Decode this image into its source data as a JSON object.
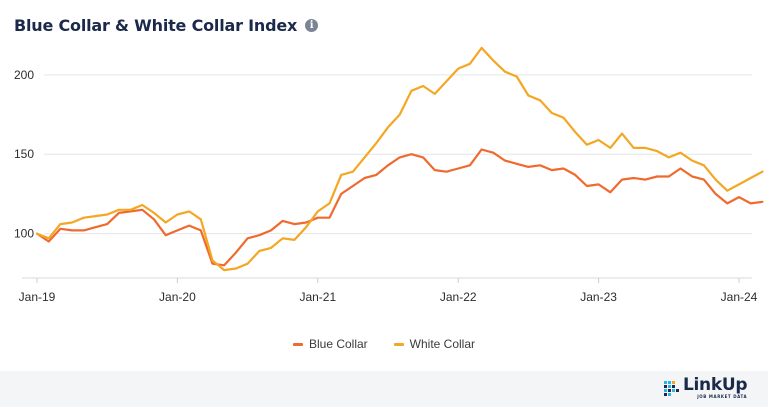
{
  "title": "Blue Collar & White Collar Index",
  "info_icon": "info-icon",
  "chart_data": {
    "type": "line",
    "title": "Blue Collar & White Collar Index",
    "xlabel": "",
    "ylabel": "",
    "x_start": "Jan-19",
    "x_end": "Apr-24",
    "x_ticks": [
      "Jan-19",
      "Jan-20",
      "Jan-21",
      "Jan-22",
      "Jan-23",
      "Jan-24"
    ],
    "y_ticks": [
      100,
      150,
      200
    ],
    "ylim": [
      72,
      222
    ],
    "grid": true,
    "legend_position": "bottom",
    "series": [
      {
        "name": "Blue Collar",
        "color": "#ef6a2e",
        "values": [
          100,
          95,
          103,
          102,
          102,
          104,
          106,
          113,
          114,
          115,
          109,
          99,
          102,
          105,
          102,
          81,
          80,
          88,
          97,
          99,
          102,
          108,
          106,
          107,
          110,
          110,
          125,
          130,
          135,
          137,
          143,
          148,
          150,
          148,
          140,
          139,
          141,
          143,
          153,
          151,
          146,
          144,
          142,
          143,
          140,
          141,
          137,
          130,
          131,
          126,
          134,
          135,
          134,
          136,
          136,
          141,
          136,
          134,
          125,
          119,
          123,
          119,
          120
        ]
      },
      {
        "name": "White Collar",
        "color": "#f3a723",
        "values": [
          100,
          97,
          106,
          107,
          110,
          111,
          112,
          115,
          115,
          118,
          113,
          107,
          112,
          114,
          109,
          83,
          77,
          78,
          81,
          89,
          91,
          97,
          96,
          104,
          114,
          119,
          137,
          139,
          148,
          157,
          167,
          175,
          190,
          193,
          188,
          196,
          204,
          207,
          217,
          209,
          202,
          199,
          187,
          184,
          176,
          173,
          164,
          156,
          159,
          154,
          163,
          154,
          154,
          152,
          148,
          151,
          146,
          143,
          134,
          127,
          131,
          135,
          139
        ]
      }
    ]
  },
  "legend": {
    "blue_collar": "Blue Collar",
    "white_collar": "White Collar"
  },
  "logo": {
    "name": "LinkUp",
    "tagline": "JOB MARKET DATA",
    "colors": [
      "#2ab3e6",
      "#1b2a4a",
      "#f3a723"
    ]
  }
}
